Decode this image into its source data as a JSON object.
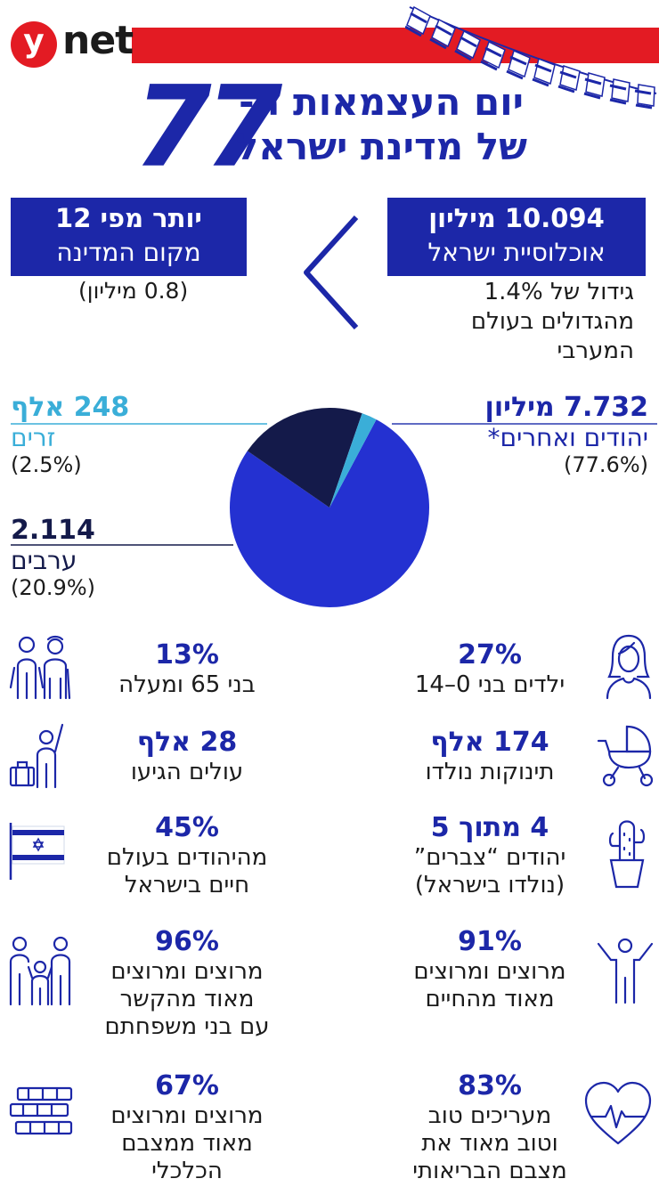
{
  "header": {
    "logo_y": "y",
    "logo_net": "net",
    "title_line1": "יום העצמאות ה-",
    "title_number": "77",
    "title_line2": "של מדינת ישראל"
  },
  "population": {
    "value": "10.094 מיליון",
    "label": "אוכלוסיית ישראל",
    "note_lines": [
      "גידול של 1.4%",
      "מהגדולים בעולם",
      "המערבי"
    ]
  },
  "city_compare": {
    "value": "יותר מפי 12",
    "label": "מקום המדינה",
    "note": "(0.8 מיליון)"
  },
  "colors": {
    "brand_blue": "#1c27a8",
    "brand_red": "#e31b23",
    "pie_jews": "#2431d1",
    "pie_arabs": "#141a4a",
    "pie_foreigners": "#3aaed8"
  },
  "chart_data": {
    "type": "pie",
    "slices": [
      {
        "name": "יהודים ואחרים*",
        "value": 77.6,
        "amount": "7.732 מיליון",
        "pct_label": "(77.6%)"
      },
      {
        "name": "ערבים",
        "value": 20.9,
        "amount": "2.114",
        "pct_label": "(20.9%)"
      },
      {
        "name": "זרים",
        "value": 2.5,
        "amount": "248 אלף",
        "pct_label": "(2.5%)"
      }
    ]
  },
  "stats": [
    {
      "value": "27%",
      "lines": [
        "ילדים בני 0–14"
      ],
      "icon": "girl-icon"
    },
    {
      "value": "13%",
      "lines": [
        "בני 65 ומעלה"
      ],
      "icon": "elderly-couple-icon"
    },
    {
      "value": "174 אלף",
      "lines": [
        "תינוקות נולדו"
      ],
      "icon": "baby-stroller-icon"
    },
    {
      "value": "28 אלף",
      "lines": [
        "עולים הגיעו"
      ],
      "icon": "immigrant-suitcase-icon"
    },
    {
      "value": "4 מתוך 5",
      "lines": [
        "יהודים “צברים”",
        "(נולדו בישראל)"
      ],
      "icon": "cactus-icon"
    },
    {
      "value": "45%",
      "lines": [
        "מהיהודים בעולם",
        "חיים בישראל"
      ],
      "icon": "israel-flag-icon"
    },
    {
      "value": "91%",
      "lines": [
        "מרוצים ומרוצים",
        "מאוד מהחיים"
      ],
      "icon": "happy-person-icon"
    },
    {
      "value": "96%",
      "lines": [
        "מרוצים ומרוצים",
        "מאוד מהקשר",
        "עם בני משפחתם"
      ],
      "icon": "family-icon"
    },
    {
      "value": "83%",
      "lines": [
        "מעריכים טוב",
        "וטוב מאוד את",
        "מצבם הבריאותי"
      ],
      "icon": "heart-pulse-icon"
    },
    {
      "value": "67%",
      "lines": [
        "מרוצים ומרוצים",
        "מאוד ממצבם",
        "הכלכלי"
      ],
      "icon": "money-stack-icon"
    }
  ]
}
